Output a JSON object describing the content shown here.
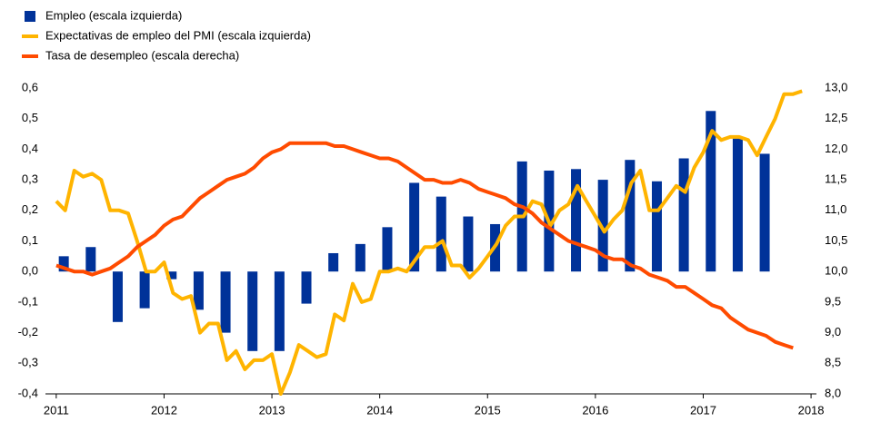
{
  "chart_data": {
    "type": "combo",
    "legend": "top-left",
    "xlim": [
      2010.9,
      2018.05
    ],
    "xticks": [
      2011,
      2012,
      2013,
      2014,
      2015,
      2016,
      2017,
      2018
    ],
    "ylim": [
      -0.4,
      0.6
    ],
    "yticks": [
      {
        "value": -0.4,
        "label": "-0,4"
      },
      {
        "value": -0.3,
        "label": "-0,3"
      },
      {
        "value": -0.2,
        "label": "-0,2"
      },
      {
        "value": -0.1,
        "label": "-0,1"
      },
      {
        "value": 0,
        "label": "0,0"
      },
      {
        "value": 0.1,
        "label": "0,1"
      },
      {
        "value": 0.2,
        "label": "0,2"
      },
      {
        "value": 0.3,
        "label": "0,3"
      },
      {
        "value": 0.4,
        "label": "0,4"
      },
      {
        "value": 0.5,
        "label": "0,5"
      },
      {
        "value": 0.6,
        "label": "0,6"
      }
    ],
    "y2lim": [
      8,
      13
    ],
    "y2ticks": [
      {
        "value": 8,
        "label": "8,0"
      },
      {
        "value": 8.5,
        "label": "8,5"
      },
      {
        "value": 9,
        "label": "9,0"
      },
      {
        "value": 9.5,
        "label": "9,5"
      },
      {
        "value": 10,
        "label": "10,0"
      },
      {
        "value": 10.5,
        "label": "10,5"
      },
      {
        "value": 11,
        "label": "11,0"
      },
      {
        "value": 11.5,
        "label": "11,5"
      },
      {
        "value": 12,
        "label": "12,0"
      },
      {
        "value": 12.5,
        "label": "12,5"
      },
      {
        "value": 13,
        "label": "13,0"
      }
    ],
    "series": [
      {
        "name": "Empleo (escala izquierda)",
        "type": "bar",
        "color": "#003299",
        "x": [
          2011.07,
          2011.32,
          2011.57,
          2011.82,
          2012.07,
          2012.32,
          2012.57,
          2012.82,
          2013.07,
          2013.32,
          2013.57,
          2013.82,
          2014.07,
          2014.32,
          2014.57,
          2014.82,
          2015.07,
          2015.32,
          2015.57,
          2015.82,
          2016.07,
          2016.32,
          2016.57,
          2016.82,
          2017.07,
          2017.32,
          2017.57
        ],
        "values": [
          0.05,
          0.08,
          -0.165,
          -0.12,
          -0.025,
          -0.125,
          -0.2,
          -0.26,
          -0.26,
          -0.105,
          0.06,
          0.09,
          0.145,
          0.29,
          0.245,
          0.18,
          0.155,
          0.36,
          0.33,
          0.335,
          0.3,
          0.365,
          0.295,
          0.37,
          0.525,
          0.435,
          0.385
        ]
      },
      {
        "name": "Expectativas de empleo del PMI (escala izquierda)",
        "type": "line",
        "color": "#ffb400",
        "x": [
          2011,
          2011.083,
          2011.167,
          2011.25,
          2011.333,
          2011.417,
          2011.5,
          2011.583,
          2011.667,
          2011.75,
          2011.833,
          2011.917,
          2012,
          2012.083,
          2012.167,
          2012.25,
          2012.333,
          2012.417,
          2012.5,
          2012.583,
          2012.667,
          2012.75,
          2012.833,
          2012.917,
          2013,
          2013.083,
          2013.167,
          2013.25,
          2013.333,
          2013.417,
          2013.5,
          2013.583,
          2013.667,
          2013.75,
          2013.833,
          2013.917,
          2014,
          2014.083,
          2014.167,
          2014.25,
          2014.333,
          2014.417,
          2014.5,
          2014.583,
          2014.667,
          2014.75,
          2014.833,
          2014.917,
          2015,
          2015.083,
          2015.167,
          2015.25,
          2015.333,
          2015.417,
          2015.5,
          2015.583,
          2015.667,
          2015.75,
          2015.833,
          2015.917,
          2016,
          2016.083,
          2016.167,
          2016.25,
          2016.333,
          2016.417,
          2016.5,
          2016.583,
          2016.667,
          2016.75,
          2016.833,
          2016.917,
          2017,
          2017.083,
          2017.167,
          2017.25,
          2017.333,
          2017.417,
          2017.5,
          2017.583,
          2017.667,
          2017.75,
          2017.833,
          2017.917
        ],
        "values": [
          0.23,
          0.2,
          0.33,
          0.31,
          0.32,
          0.3,
          0.2,
          0.2,
          0.19,
          0.1,
          0.0,
          0.0,
          0.03,
          -0.07,
          -0.09,
          -0.08,
          -0.2,
          -0.17,
          -0.17,
          -0.29,
          -0.26,
          -0.32,
          -0.29,
          -0.29,
          -0.27,
          -0.4,
          -0.33,
          -0.24,
          -0.26,
          -0.28,
          -0.27,
          -0.14,
          -0.16,
          -0.04,
          -0.1,
          -0.09,
          0.0,
          0.0,
          0.01,
          0.0,
          0.04,
          0.08,
          0.08,
          0.1,
          0.02,
          0.02,
          -0.02,
          0.01,
          0.05,
          0.09,
          0.15,
          0.18,
          0.18,
          0.23,
          0.22,
          0.15,
          0.2,
          0.22,
          0.28,
          0.23,
          0.18,
          0.13,
          0.17,
          0.2,
          0.29,
          0.33,
          0.2,
          0.2,
          0.24,
          0.28,
          0.26,
          0.34,
          0.39,
          0.46,
          0.43,
          0.44,
          0.44,
          0.43,
          0.38,
          0.44,
          0.5,
          0.58,
          0.58,
          0.59
        ]
      },
      {
        "name": "Tasa de desempleo (escala derecha)",
        "type": "line",
        "axis": "y2",
        "color": "#ff4b00",
        "x": [
          2011,
          2011.083,
          2011.167,
          2011.25,
          2011.333,
          2011.417,
          2011.5,
          2011.583,
          2011.667,
          2011.75,
          2011.833,
          2011.917,
          2012,
          2012.083,
          2012.167,
          2012.25,
          2012.333,
          2012.417,
          2012.5,
          2012.583,
          2012.667,
          2012.75,
          2012.833,
          2012.917,
          2013,
          2013.083,
          2013.167,
          2013.25,
          2013.333,
          2013.417,
          2013.5,
          2013.583,
          2013.667,
          2013.75,
          2013.833,
          2013.917,
          2014,
          2014.083,
          2014.167,
          2014.25,
          2014.333,
          2014.417,
          2014.5,
          2014.583,
          2014.667,
          2014.75,
          2014.833,
          2014.917,
          2015,
          2015.083,
          2015.167,
          2015.25,
          2015.333,
          2015.417,
          2015.5,
          2015.583,
          2015.667,
          2015.75,
          2015.833,
          2015.917,
          2016,
          2016.083,
          2016.167,
          2016.25,
          2016.333,
          2016.417,
          2016.5,
          2016.583,
          2016.667,
          2016.75,
          2016.833,
          2016.917,
          2017,
          2017.083,
          2017.167,
          2017.25,
          2017.333,
          2017.417,
          2017.5,
          2017.583,
          2017.667,
          2017.75,
          2017.833
        ],
        "values": [
          10.1,
          10.05,
          10.0,
          10.0,
          9.95,
          10.0,
          10.05,
          10.15,
          10.25,
          10.4,
          10.5,
          10.6,
          10.75,
          10.85,
          10.9,
          11.05,
          11.2,
          11.3,
          11.4,
          11.5,
          11.55,
          11.6,
          11.7,
          11.85,
          11.95,
          12.0,
          12.1,
          12.1,
          12.1,
          12.1,
          12.1,
          12.05,
          12.05,
          12.0,
          11.95,
          11.9,
          11.85,
          11.85,
          11.8,
          11.7,
          11.6,
          11.5,
          11.5,
          11.45,
          11.45,
          11.5,
          11.45,
          11.35,
          11.3,
          11.25,
          11.2,
          11.1,
          11.05,
          10.95,
          10.8,
          10.7,
          10.6,
          10.5,
          10.45,
          10.4,
          10.35,
          10.25,
          10.2,
          10.2,
          10.1,
          10.05,
          9.95,
          9.9,
          9.85,
          9.75,
          9.75,
          9.65,
          9.55,
          9.45,
          9.4,
          9.25,
          9.15,
          9.05,
          9.0,
          8.95,
          8.85,
          8.8,
          8.75
        ]
      }
    ]
  }
}
